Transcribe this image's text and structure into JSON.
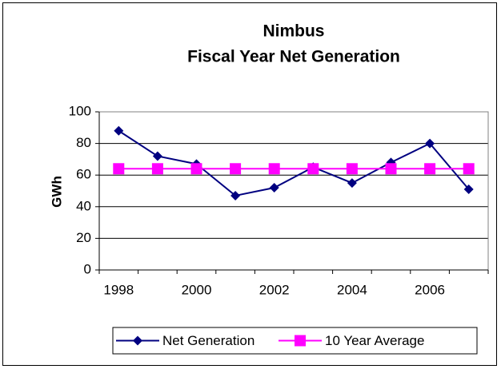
{
  "chart_data": {
    "type": "line",
    "title": [
      "Nimbus",
      "Fiscal Year Net Generation"
    ],
    "y_label": "GWh",
    "categories": [
      "1998",
      null,
      "2000",
      null,
      "2002",
      null,
      "2004",
      null,
      "2006",
      null
    ],
    "series": [
      {
        "name": "Net Generation",
        "color": "#000080",
        "marker": "diamond",
        "values": [
          88,
          72,
          67,
          47,
          52,
          65,
          55,
          68,
          80,
          51
        ]
      },
      {
        "name": "10 Year Average",
        "color": "#ff00ff",
        "marker": "square",
        "values": [
          64,
          64,
          64,
          64,
          64,
          64,
          64,
          64,
          64,
          64
        ]
      }
    ],
    "ylim": [
      0,
      100
    ],
    "yticks": [
      0,
      20,
      40,
      60,
      80,
      100
    ],
    "grid": true,
    "legend": "bottom"
  }
}
